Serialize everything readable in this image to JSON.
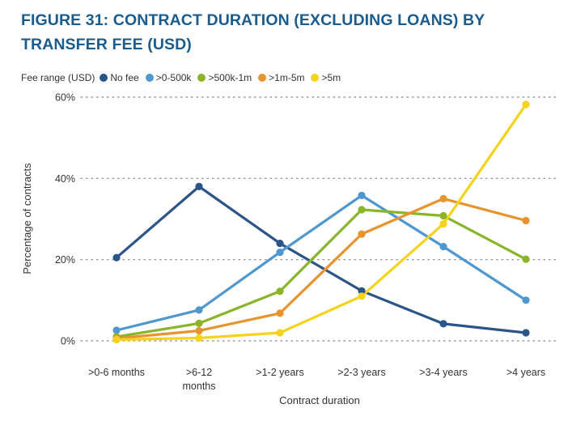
{
  "chart_data": {
    "type": "line",
    "title": "FIGURE 31: CONTRACT DURATION (EXCLUDING LOANS) BY TRANSFER FEE (USD)",
    "title_lines": [
      "FIGURE 31: CONTRACT DURATION (EXCLUDING LOANS) BY",
      "TRANSFER FEE (USD)"
    ],
    "legend_title": "Fee range (USD)",
    "categories": [
      ">0-6 months",
      ">6-12 months",
      ">1-2 years",
      ">2-3 years",
      ">3-4 years",
      ">4 years"
    ],
    "category_lines": [
      [
        ">0-6 months"
      ],
      [
        ">6-12",
        "months"
      ],
      [
        ">1-2 years"
      ],
      [
        ">2-3 years"
      ],
      [
        ">3-4 years"
      ],
      [
        ">4 years"
      ]
    ],
    "xlabel": "Contract duration",
    "ylabel": "Percentage of contracts",
    "ylim": [
      0,
      60
    ],
    "yticks": [
      0,
      20,
      40,
      60
    ],
    "ytick_labels": [
      "0%",
      "20%",
      "40%",
      "60%"
    ],
    "grid": true,
    "series": [
      {
        "name": "No fee",
        "color": "#2b5487",
        "values": [
          20.5,
          38,
          24,
          12.3,
          4.2,
          2
        ]
      },
      {
        "name": ">0-500k",
        "color": "#4e98cf",
        "values": [
          2.6,
          7.6,
          21.8,
          35.8,
          23.2,
          10
        ]
      },
      {
        "name": ">500k-1m",
        "color": "#8ab52b",
        "values": [
          1,
          4.3,
          12.2,
          32.3,
          30.8,
          20.1
        ]
      },
      {
        "name": ">1m-5m",
        "color": "#e8942e",
        "values": [
          0.6,
          2.5,
          6.8,
          26.3,
          35,
          29.6
        ]
      },
      {
        "name": ">5m",
        "color": "#f5d31d",
        "values": [
          0.3,
          0.7,
          2,
          11,
          28.8,
          58.2
        ]
      }
    ]
  }
}
